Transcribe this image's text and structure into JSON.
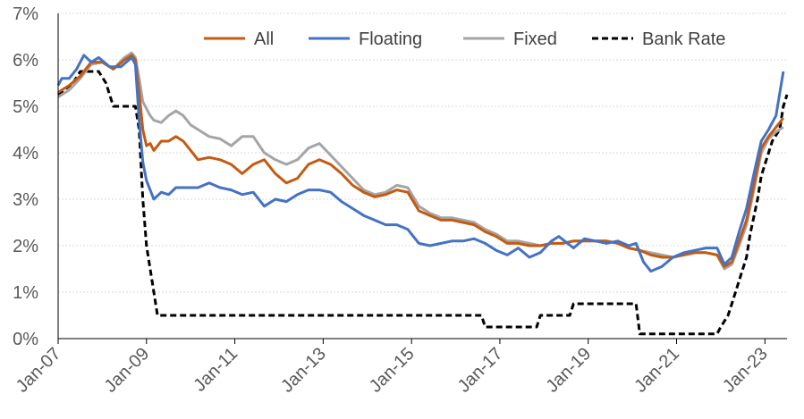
{
  "chart_data": {
    "type": "line",
    "ylim": [
      0,
      7
    ],
    "yticks": [
      "0%",
      "1%",
      "2%",
      "3%",
      "4%",
      "5%",
      "6%",
      "7%"
    ],
    "xlim": [
      "2007-01",
      "2023-07"
    ],
    "xticks": [
      "Jan-07",
      "Jan-09",
      "Jan-11",
      "Jan-13",
      "Jan-15",
      "Jan-17",
      "Jan-19",
      "Jan-21",
      "Jan-23"
    ],
    "grid": "horizontal",
    "legend_position": "top",
    "colors": {
      "All": "#c55a11",
      "Floating": "#4472c4",
      "Fixed": "#a5a5a5",
      "Bank Rate": "#000000"
    },
    "series": [
      {
        "name": "All",
        "style": "solid",
        "points": [
          [
            "2007-01",
            5.3
          ],
          [
            "2007-04",
            5.45
          ],
          [
            "2007-07",
            5.65
          ],
          [
            "2007-10",
            5.95
          ],
          [
            "2008-01",
            5.95
          ],
          [
            "2008-04",
            5.8
          ],
          [
            "2008-07",
            6.0
          ],
          [
            "2008-09",
            6.1
          ],
          [
            "2008-10",
            6.0
          ],
          [
            "2008-11",
            5.3
          ],
          [
            "2008-12",
            4.5
          ],
          [
            "2009-01",
            4.15
          ],
          [
            "2009-02",
            4.2
          ],
          [
            "2009-03",
            4.05
          ],
          [
            "2009-05",
            4.25
          ],
          [
            "2009-07",
            4.25
          ],
          [
            "2009-09",
            4.35
          ],
          [
            "2009-11",
            4.25
          ],
          [
            "2010-01",
            4.05
          ],
          [
            "2010-03",
            3.85
          ],
          [
            "2010-06",
            3.9
          ],
          [
            "2010-09",
            3.85
          ],
          [
            "2010-12",
            3.75
          ],
          [
            "2011-03",
            3.55
          ],
          [
            "2011-06",
            3.75
          ],
          [
            "2011-09",
            3.85
          ],
          [
            "2011-12",
            3.55
          ],
          [
            "2012-03",
            3.35
          ],
          [
            "2012-06",
            3.45
          ],
          [
            "2012-09",
            3.75
          ],
          [
            "2012-12",
            3.85
          ],
          [
            "2013-03",
            3.75
          ],
          [
            "2013-06",
            3.55
          ],
          [
            "2013-09",
            3.3
          ],
          [
            "2013-12",
            3.15
          ],
          [
            "2014-03",
            3.05
          ],
          [
            "2014-06",
            3.1
          ],
          [
            "2014-09",
            3.2
          ],
          [
            "2014-12",
            3.15
          ],
          [
            "2015-03",
            2.75
          ],
          [
            "2015-06",
            2.65
          ],
          [
            "2015-09",
            2.55
          ],
          [
            "2015-12",
            2.55
          ],
          [
            "2016-03",
            2.5
          ],
          [
            "2016-06",
            2.45
          ],
          [
            "2016-09",
            2.3
          ],
          [
            "2016-12",
            2.2
          ],
          [
            "2017-03",
            2.05
          ],
          [
            "2017-06",
            2.05
          ],
          [
            "2017-09",
            2.0
          ],
          [
            "2017-12",
            2.0
          ],
          [
            "2018-03",
            2.05
          ],
          [
            "2018-06",
            2.05
          ],
          [
            "2018-09",
            2.1
          ],
          [
            "2018-12",
            2.1
          ],
          [
            "2019-03",
            2.1
          ],
          [
            "2019-06",
            2.1
          ],
          [
            "2019-09",
            2.05
          ],
          [
            "2019-12",
            1.95
          ],
          [
            "2020-03",
            1.9
          ],
          [
            "2020-06",
            1.8
          ],
          [
            "2020-09",
            1.75
          ],
          [
            "2020-12",
            1.75
          ],
          [
            "2021-03",
            1.8
          ],
          [
            "2021-06",
            1.85
          ],
          [
            "2021-09",
            1.85
          ],
          [
            "2021-12",
            1.8
          ],
          [
            "2022-02",
            1.55
          ],
          [
            "2022-04",
            1.65
          ],
          [
            "2022-06",
            2.1
          ],
          [
            "2022-08",
            2.55
          ],
          [
            "2022-10",
            3.3
          ],
          [
            "2022-12",
            4.1
          ],
          [
            "2023-02",
            4.35
          ],
          [
            "2023-04",
            4.55
          ],
          [
            "2023-06",
            4.75
          ]
        ]
      },
      {
        "name": "Floating",
        "style": "solid",
        "points": [
          [
            "2007-01",
            5.45
          ],
          [
            "2007-02",
            5.6
          ],
          [
            "2007-04",
            5.6
          ],
          [
            "2007-06",
            5.8
          ],
          [
            "2007-08",
            6.1
          ],
          [
            "2007-10",
            5.95
          ],
          [
            "2007-12",
            6.05
          ],
          [
            "2008-03",
            5.85
          ],
          [
            "2008-06",
            5.85
          ],
          [
            "2008-09",
            6.05
          ],
          [
            "2008-10",
            5.9
          ],
          [
            "2008-11",
            4.7
          ],
          [
            "2008-12",
            3.8
          ],
          [
            "2009-01",
            3.4
          ],
          [
            "2009-02",
            3.2
          ],
          [
            "2009-03",
            3.0
          ],
          [
            "2009-05",
            3.15
          ],
          [
            "2009-07",
            3.1
          ],
          [
            "2009-09",
            3.25
          ],
          [
            "2009-12",
            3.25
          ],
          [
            "2010-03",
            3.25
          ],
          [
            "2010-06",
            3.35
          ],
          [
            "2010-09",
            3.25
          ],
          [
            "2010-12",
            3.2
          ],
          [
            "2011-03",
            3.1
          ],
          [
            "2011-06",
            3.15
          ],
          [
            "2011-09",
            2.85
          ],
          [
            "2011-12",
            3.0
          ],
          [
            "2012-03",
            2.95
          ],
          [
            "2012-06",
            3.1
          ],
          [
            "2012-09",
            3.2
          ],
          [
            "2012-12",
            3.2
          ],
          [
            "2013-03",
            3.15
          ],
          [
            "2013-06",
            2.95
          ],
          [
            "2013-09",
            2.8
          ],
          [
            "2013-12",
            2.65
          ],
          [
            "2014-03",
            2.55
          ],
          [
            "2014-06",
            2.45
          ],
          [
            "2014-09",
            2.45
          ],
          [
            "2014-12",
            2.35
          ],
          [
            "2015-03",
            2.05
          ],
          [
            "2015-06",
            2.0
          ],
          [
            "2015-09",
            2.05
          ],
          [
            "2015-12",
            2.1
          ],
          [
            "2016-03",
            2.1
          ],
          [
            "2016-06",
            2.15
          ],
          [
            "2016-09",
            2.05
          ],
          [
            "2016-12",
            1.9
          ],
          [
            "2017-03",
            1.8
          ],
          [
            "2017-06",
            1.95
          ],
          [
            "2017-09",
            1.75
          ],
          [
            "2017-12",
            1.85
          ],
          [
            "2018-03",
            2.1
          ],
          [
            "2018-05",
            2.2
          ],
          [
            "2018-09",
            1.95
          ],
          [
            "2018-12",
            2.15
          ],
          [
            "2019-03",
            2.1
          ],
          [
            "2019-06",
            2.05
          ],
          [
            "2019-09",
            2.1
          ],
          [
            "2019-12",
            2.0
          ],
          [
            "2020-02",
            2.05
          ],
          [
            "2020-04",
            1.65
          ],
          [
            "2020-06",
            1.45
          ],
          [
            "2020-09",
            1.55
          ],
          [
            "2020-12",
            1.75
          ],
          [
            "2021-03",
            1.85
          ],
          [
            "2021-06",
            1.9
          ],
          [
            "2021-09",
            1.95
          ],
          [
            "2021-12",
            1.95
          ],
          [
            "2022-02",
            1.6
          ],
          [
            "2022-04",
            1.75
          ],
          [
            "2022-06",
            2.3
          ],
          [
            "2022-08",
            2.8
          ],
          [
            "2022-10",
            3.55
          ],
          [
            "2022-12",
            4.25
          ],
          [
            "2023-02",
            4.5
          ],
          [
            "2023-04",
            4.8
          ],
          [
            "2023-06",
            5.75
          ]
        ]
      },
      {
        "name": "Fixed",
        "style": "solid",
        "points": [
          [
            "2007-01",
            5.2
          ],
          [
            "2007-04",
            5.35
          ],
          [
            "2007-07",
            5.6
          ],
          [
            "2007-10",
            5.9
          ],
          [
            "2008-01",
            5.95
          ],
          [
            "2008-04",
            5.8
          ],
          [
            "2008-07",
            6.05
          ],
          [
            "2008-09",
            6.15
          ],
          [
            "2008-10",
            6.05
          ],
          [
            "2008-11",
            5.6
          ],
          [
            "2008-12",
            5.1
          ],
          [
            "2009-01",
            4.95
          ],
          [
            "2009-02",
            4.8
          ],
          [
            "2009-03",
            4.7
          ],
          [
            "2009-05",
            4.65
          ],
          [
            "2009-07",
            4.8
          ],
          [
            "2009-09",
            4.9
          ],
          [
            "2009-11",
            4.8
          ],
          [
            "2010-01",
            4.6
          ],
          [
            "2010-03",
            4.5
          ],
          [
            "2010-06",
            4.35
          ],
          [
            "2010-09",
            4.3
          ],
          [
            "2010-12",
            4.15
          ],
          [
            "2011-03",
            4.35
          ],
          [
            "2011-06",
            4.35
          ],
          [
            "2011-09",
            4.0
          ],
          [
            "2011-12",
            3.85
          ],
          [
            "2012-03",
            3.75
          ],
          [
            "2012-06",
            3.85
          ],
          [
            "2012-09",
            4.1
          ],
          [
            "2012-12",
            4.2
          ],
          [
            "2013-03",
            3.95
          ],
          [
            "2013-06",
            3.7
          ],
          [
            "2013-09",
            3.45
          ],
          [
            "2013-12",
            3.2
          ],
          [
            "2014-03",
            3.1
          ],
          [
            "2014-06",
            3.15
          ],
          [
            "2014-09",
            3.3
          ],
          [
            "2014-12",
            3.25
          ],
          [
            "2015-03",
            2.85
          ],
          [
            "2015-06",
            2.7
          ],
          [
            "2015-09",
            2.6
          ],
          [
            "2015-12",
            2.6
          ],
          [
            "2016-03",
            2.55
          ],
          [
            "2016-06",
            2.5
          ],
          [
            "2016-09",
            2.35
          ],
          [
            "2016-12",
            2.25
          ],
          [
            "2017-03",
            2.1
          ],
          [
            "2017-06",
            2.1
          ],
          [
            "2017-09",
            2.05
          ],
          [
            "2017-12",
            2.0
          ],
          [
            "2018-03",
            2.05
          ],
          [
            "2018-06",
            2.05
          ],
          [
            "2018-09",
            2.1
          ],
          [
            "2018-12",
            2.1
          ],
          [
            "2019-03",
            2.1
          ],
          [
            "2019-06",
            2.1
          ],
          [
            "2019-09",
            2.05
          ],
          [
            "2019-12",
            1.95
          ],
          [
            "2020-03",
            1.9
          ],
          [
            "2020-06",
            1.85
          ],
          [
            "2020-09",
            1.8
          ],
          [
            "2020-12",
            1.75
          ],
          [
            "2021-03",
            1.8
          ],
          [
            "2021-06",
            1.85
          ],
          [
            "2021-09",
            1.85
          ],
          [
            "2021-12",
            1.8
          ],
          [
            "2022-02",
            1.5
          ],
          [
            "2022-04",
            1.6
          ],
          [
            "2022-06",
            2.0
          ],
          [
            "2022-08",
            2.45
          ],
          [
            "2022-10",
            3.2
          ],
          [
            "2022-12",
            4.0
          ],
          [
            "2023-02",
            4.3
          ],
          [
            "2023-04",
            4.45
          ],
          [
            "2023-06",
            4.55
          ]
        ]
      },
      {
        "name": "Bank Rate",
        "style": "dashed",
        "points": [
          [
            "2007-01",
            5.25
          ],
          [
            "2007-05",
            5.5
          ],
          [
            "2007-07",
            5.75
          ],
          [
            "2007-12",
            5.75
          ],
          [
            "2008-02",
            5.5
          ],
          [
            "2008-04",
            5.0
          ],
          [
            "2008-10",
            5.0
          ],
          [
            "2008-11",
            4.5
          ],
          [
            "2008-12",
            3.0
          ],
          [
            "2009-01",
            2.0
          ],
          [
            "2009-02",
            1.5
          ],
          [
            "2009-03",
            1.0
          ],
          [
            "2009-04",
            0.5
          ],
          [
            "2016-08",
            0.5
          ],
          [
            "2016-09",
            0.25
          ],
          [
            "2017-11",
            0.25
          ],
          [
            "2017-12",
            0.5
          ],
          [
            "2018-08",
            0.5
          ],
          [
            "2018-09",
            0.75
          ],
          [
            "2020-02",
            0.75
          ],
          [
            "2020-03",
            0.1
          ],
          [
            "2021-12",
            0.1
          ],
          [
            "2022-01",
            0.25
          ],
          [
            "2022-03",
            0.5
          ],
          [
            "2022-04",
            0.75
          ],
          [
            "2022-05",
            1.0
          ],
          [
            "2022-06",
            1.25
          ],
          [
            "2022-08",
            1.75
          ],
          [
            "2022-09",
            2.25
          ],
          [
            "2022-11",
            3.0
          ],
          [
            "2022-12",
            3.5
          ],
          [
            "2023-02",
            4.0
          ],
          [
            "2023-03",
            4.25
          ],
          [
            "2023-05",
            4.5
          ],
          [
            "2023-06",
            5.0
          ],
          [
            "2023-07",
            5.25
          ]
        ]
      }
    ]
  }
}
